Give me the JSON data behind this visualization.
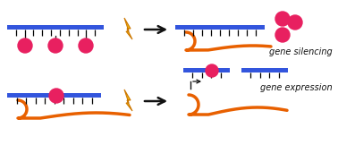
{
  "bg_color": "#ffffff",
  "blue_color": "#3355dd",
  "orange_color": "#e86000",
  "pink_color": "#e82060",
  "black": "#111111",
  "yellow": "#f5c010",
  "dark_orange": "#cc7700",
  "label_silencing": "gene silencing",
  "label_expression": "gene expression",
  "font_size": 7.0
}
